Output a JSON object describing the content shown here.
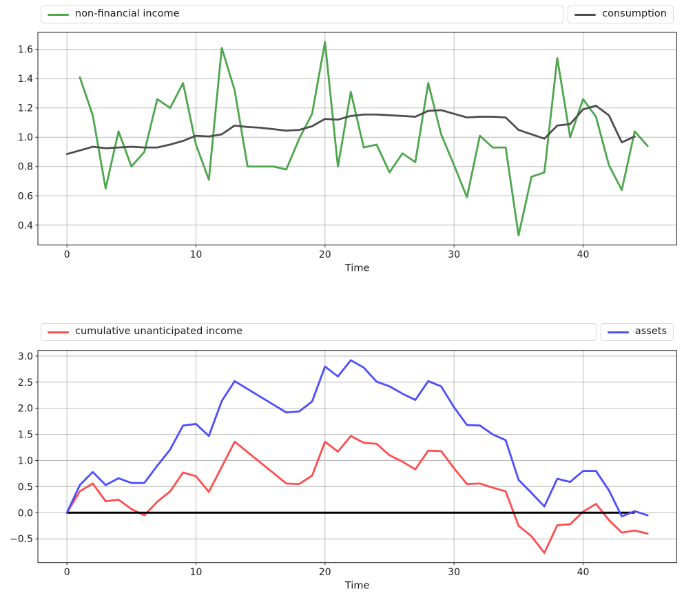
{
  "figure": {
    "background": "#ffffff",
    "text_color": "#1a1a1a",
    "grid_color": "#b9b9b9",
    "spine_color": "#1f1f1f",
    "legend_border_color": "#d9d9d9"
  },
  "chart_data": [
    {
      "type": "line",
      "title": "",
      "xlabel": "Time",
      "ylabel": "",
      "grid": true,
      "legend_position": "row above axes: left expanded box + right compact box",
      "xlim": [
        -2.25,
        47.25
      ],
      "ylim": [
        0.264,
        1.716
      ],
      "xticks": [
        0,
        10,
        20,
        30,
        40
      ],
      "xtick_labels": [
        "0",
        "10",
        "20",
        "30",
        "40"
      ],
      "yticks": [
        0.4,
        0.6,
        0.8,
        1.0,
        1.2,
        1.4,
        1.6
      ],
      "ytick_labels": [
        "0.4",
        "0.6",
        "0.8",
        "1.0",
        "1.2",
        "1.4",
        "1.6"
      ],
      "series": [
        {
          "name": "non-financial income",
          "color": "#4da64d",
          "x_start": 1,
          "values": [
            1.41,
            1.15,
            0.65,
            1.04,
            0.8,
            0.9,
            1.26,
            1.2,
            1.37,
            0.95,
            0.71,
            1.61,
            1.32,
            0.8,
            0.8,
            0.8,
            0.78,
            0.99,
            1.16,
            1.65,
            0.8,
            1.31,
            0.93,
            0.95,
            0.76,
            0.89,
            0.83,
            1.37,
            1.02,
            0.81,
            0.59,
            1.01,
            0.93,
            0.93,
            0.33,
            0.73,
            0.76,
            1.54,
            1.0,
            1.26,
            1.14,
            0.81,
            0.64,
            1.04,
            0.94
          ]
        },
        {
          "name": "consumption",
          "color": "#4d4d4d",
          "x_start": 0,
          "values": [
            0.885,
            0.91,
            0.935,
            0.925,
            0.93,
            0.935,
            0.93,
            0.93,
            0.95,
            0.975,
            1.01,
            1.005,
            1.02,
            1.08,
            1.07,
            1.065,
            1.055,
            1.045,
            1.05,
            1.075,
            1.125,
            1.12,
            1.145,
            1.155,
            1.155,
            1.15,
            1.145,
            1.14,
            1.18,
            1.185,
            1.16,
            1.135,
            1.14,
            1.14,
            1.135,
            1.05,
            1.02,
            0.99,
            1.08,
            1.09,
            1.19,
            1.215,
            1.15,
            0.965,
            1.005
          ]
        }
      ]
    },
    {
      "type": "line",
      "title": "",
      "xlabel": "Time",
      "ylabel": "",
      "grid": true,
      "legend_position": "row above axes: left expanded box + right compact box",
      "xlim": [
        -2.25,
        47.25
      ],
      "ylim": [
        -0.955,
        3.108
      ],
      "xticks": [
        0,
        10,
        20,
        30,
        40
      ],
      "xtick_labels": [
        "0",
        "10",
        "20",
        "30",
        "40"
      ],
      "yticks": [
        -0.5,
        0.0,
        0.5,
        1.0,
        1.5,
        2.0,
        2.5,
        3.0
      ],
      "ytick_labels": [
        "−0.5",
        "0.0",
        "0.5",
        "1.0",
        "1.5",
        "2.0",
        "2.5",
        "3.0"
      ],
      "zero_line": {
        "y": 0,
        "x_start": 0,
        "x_end": 44,
        "color": "#000000"
      },
      "series": [
        {
          "name": "cumulative unanticipated income",
          "color": "#ff4d4d",
          "x_start": 0,
          "values": [
            0.0,
            0.41,
            0.56,
            0.22,
            0.25,
            0.07,
            -0.05,
            0.21,
            0.41,
            0.77,
            0.7,
            0.4,
            0.88,
            1.36,
            1.16,
            0.96,
            0.76,
            0.56,
            0.55,
            0.71,
            1.36,
            1.17,
            1.47,
            1.34,
            1.32,
            1.1,
            0.98,
            0.83,
            1.19,
            1.18,
            0.85,
            0.55,
            0.56,
            0.48,
            0.41,
            -0.25,
            -0.45,
            -0.77,
            -0.24,
            -0.22,
            0.02,
            0.17,
            -0.14,
            -0.38,
            -0.34,
            -0.4
          ]
        },
        {
          "name": "assets",
          "color": "#4d4dff",
          "x_start": 0,
          "values": [
            0.0,
            0.53,
            0.78,
            0.53,
            0.66,
            0.57,
            0.57,
            0.9,
            1.21,
            1.67,
            1.7,
            1.47,
            2.14,
            2.52,
            2.37,
            2.22,
            2.07,
            1.92,
            1.94,
            2.13,
            2.8,
            2.61,
            2.92,
            2.78,
            2.51,
            2.42,
            2.28,
            2.16,
            2.52,
            2.42,
            2.02,
            1.68,
            1.67,
            1.5,
            1.39,
            0.63,
            0.38,
            0.12,
            0.65,
            0.59,
            0.8,
            0.8,
            0.43,
            -0.07,
            0.03,
            -0.05
          ]
        }
      ]
    }
  ]
}
